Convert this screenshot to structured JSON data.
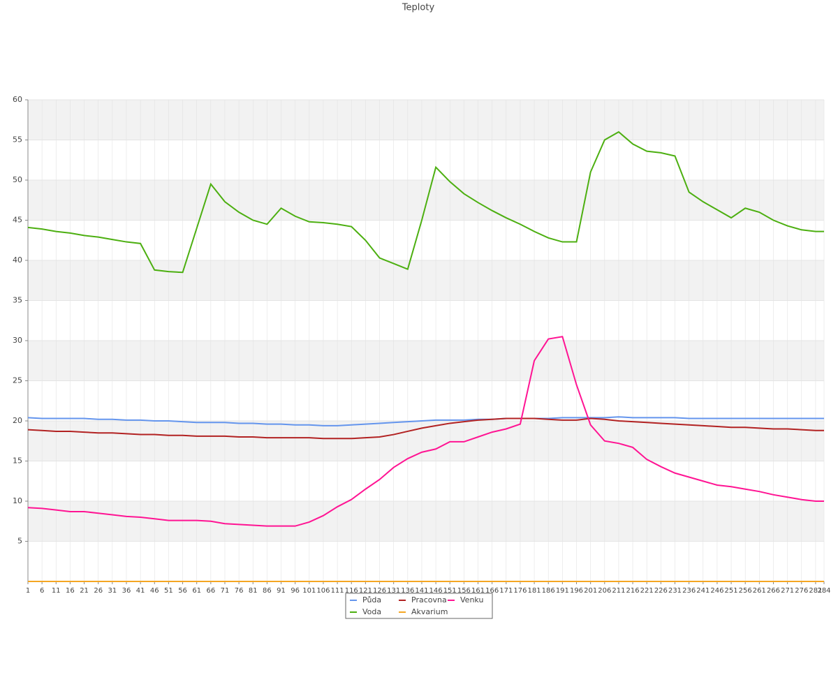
{
  "chart_data": {
    "type": "line",
    "title": "Teploty",
    "x": [
      1,
      6,
      11,
      16,
      21,
      26,
      31,
      36,
      41,
      46,
      51,
      56,
      61,
      66,
      71,
      76,
      81,
      86,
      91,
      96,
      101,
      106,
      111,
      116,
      121,
      126,
      131,
      136,
      141,
      146,
      151,
      156,
      161,
      166,
      171,
      176,
      181,
      186,
      191,
      196,
      201,
      206,
      211,
      216,
      221,
      226,
      231,
      236,
      241,
      246,
      251,
      256,
      261,
      266,
      271,
      276,
      281,
      284
    ],
    "xlim": [
      1,
      284
    ],
    "ylim": [
      0,
      60
    ],
    "yticks": [
      5,
      10,
      15,
      20,
      25,
      30,
      35,
      40,
      45,
      50,
      55,
      60
    ],
    "grid": true,
    "series": [
      {
        "name": "Půda",
        "color": "#6495ed",
        "values": [
          20.4,
          20.3,
          20.3,
          20.3,
          20.3,
          20.2,
          20.2,
          20.1,
          20.1,
          20,
          20,
          19.9,
          19.8,
          19.8,
          19.8,
          19.7,
          19.7,
          19.6,
          19.6,
          19.5,
          19.5,
          19.4,
          19.4,
          19.5,
          19.6,
          19.7,
          19.8,
          19.9,
          20,
          20.1,
          20.1,
          20.1,
          20.2,
          20.2,
          20.3,
          20.3,
          20.3,
          20.3,
          20.4,
          20.4,
          20.4,
          20.4,
          20.5,
          20.4,
          20.4,
          20.4,
          20.4,
          20.3,
          20.3,
          20.3,
          20.3,
          20.3,
          20.3,
          20.3,
          20.3,
          20.3,
          20.3,
          20.3
        ]
      },
      {
        "name": "Voda",
        "color": "#4caf10",
        "values": [
          44.1,
          43.9,
          43.6,
          43.4,
          43.1,
          42.9,
          42.6,
          42.3,
          42.1,
          38.8,
          38.6,
          38.5,
          44,
          49.5,
          47.3,
          46,
          45,
          44.5,
          46.5,
          45.5,
          44.8,
          44.7,
          44.5,
          44.2,
          42.5,
          40.3,
          39.6,
          38.9,
          45,
          51.6,
          49.8,
          48.3,
          47.2,
          46.2,
          45.3,
          44.5,
          43.6,
          42.8,
          42.3,
          42.3,
          51,
          55,
          56,
          54.5,
          53.6,
          53.4,
          53,
          48.5,
          47.3,
          46.3,
          45.3,
          46.5,
          46,
          45,
          44.3,
          43.8,
          43.6,
          43.6
        ]
      },
      {
        "name": "Pracovna",
        "color": "#b22222",
        "values": [
          18.9,
          18.8,
          18.7,
          18.7,
          18.6,
          18.5,
          18.5,
          18.4,
          18.3,
          18.3,
          18.2,
          18.2,
          18.1,
          18.1,
          18.1,
          18,
          18,
          17.9,
          17.9,
          17.9,
          17.9,
          17.8,
          17.8,
          17.8,
          17.9,
          18,
          18.3,
          18.7,
          19.1,
          19.4,
          19.7,
          19.9,
          20.1,
          20.2,
          20.3,
          20.3,
          20.3,
          20.2,
          20.1,
          20.1,
          20.3,
          20.2,
          20,
          19.9,
          19.8,
          19.7,
          19.6,
          19.5,
          19.4,
          19.3,
          19.2,
          19.2,
          19.1,
          19,
          19,
          18.9,
          18.8,
          18.8
        ]
      },
      {
        "name": "Akvarium",
        "color": "#f5a623",
        "values": [
          0,
          0,
          0,
          0,
          0,
          0,
          0,
          0,
          0,
          0,
          0,
          0,
          0,
          0,
          0,
          0,
          0,
          0,
          0,
          0,
          0,
          0,
          0,
          0,
          0,
          0,
          0,
          0,
          0,
          0,
          0,
          0,
          0,
          0,
          0,
          0,
          0,
          0,
          0,
          0,
          0,
          0,
          0,
          0,
          0,
          0,
          0,
          0,
          0,
          0,
          0,
          0,
          0,
          0,
          0,
          0,
          0,
          0
        ]
      },
      {
        "name": "Venku",
        "color": "#ff1493",
        "values": [
          9.2,
          9.1,
          8.9,
          8.7,
          8.7,
          8.5,
          8.3,
          8.1,
          8,
          7.8,
          7.6,
          7.6,
          7.6,
          7.5,
          7.2,
          7.1,
          7,
          6.9,
          6.9,
          6.9,
          7.4,
          8.2,
          9.3,
          10.2,
          11.5,
          12.7,
          14.2,
          15.3,
          16.1,
          16.5,
          17.4,
          17.4,
          18,
          18.6,
          19,
          19.6,
          27.5,
          30.2,
          30.5,
          24.5,
          19.5,
          17.5,
          17.2,
          16.7,
          15.2,
          14.3,
          13.5,
          13,
          12.5,
          12,
          11.8,
          11.5,
          11.2,
          10.8,
          10.5,
          10.2,
          10,
          10
        ]
      }
    ]
  }
}
